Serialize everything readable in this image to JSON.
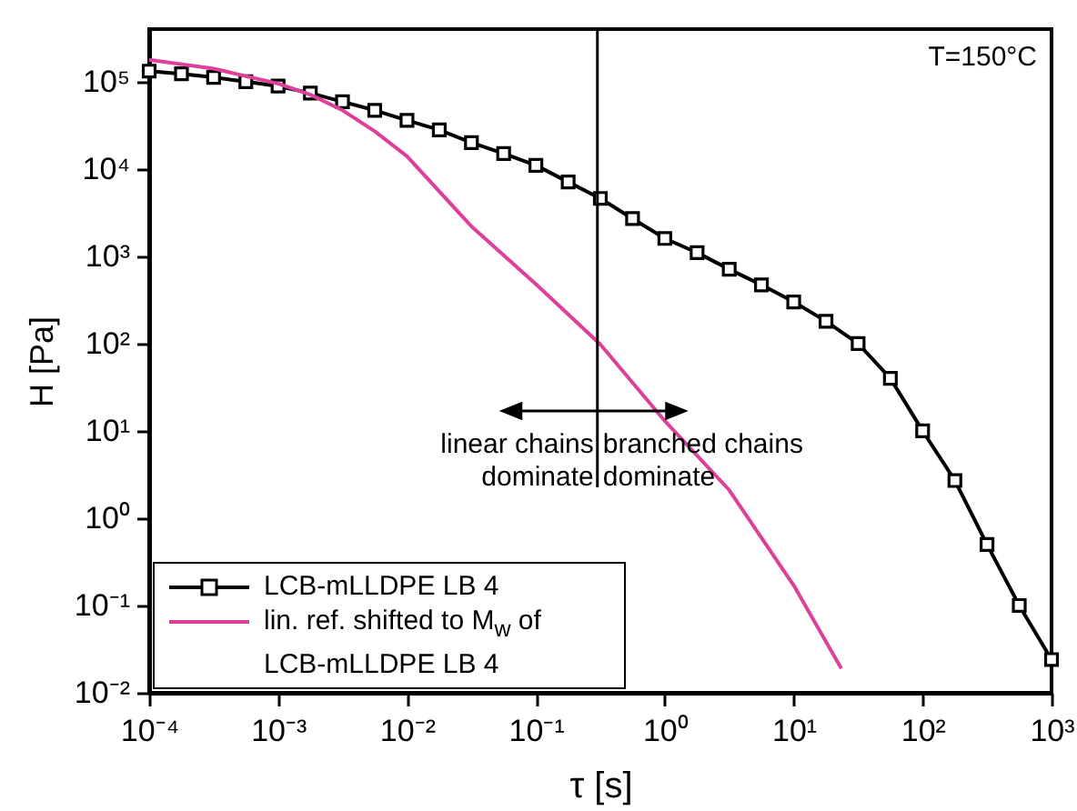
{
  "chart_data": {
    "type": "line",
    "xlabel": "τ [s]",
    "ylabel": "H [Pa]",
    "log": "xy",
    "legend": "bottom left",
    "xlim": [
      0.0001,
      1000
    ],
    "ylim": [
      0.01,
      400000
    ],
    "xticks": [
      {
        "value": 0.0001,
        "label": "10⁻⁴"
      },
      {
        "value": 0.001,
        "label": "10⁻³"
      },
      {
        "value": 0.01,
        "label": "10⁻²"
      },
      {
        "value": 0.1,
        "label": "10⁻¹"
      },
      {
        "value": 1,
        "label": "10⁰"
      },
      {
        "value": 10,
        "label": "10¹"
      },
      {
        "value": 100,
        "label": "10²"
      },
      {
        "value": 1000,
        "label": "10³"
      }
    ],
    "yticks": [
      {
        "value": 0.01,
        "label": "10⁻²"
      },
      {
        "value": 0.1,
        "label": "10⁻¹"
      },
      {
        "value": 1,
        "label": "10⁰"
      },
      {
        "value": 10,
        "label": "10¹"
      },
      {
        "value": 100,
        "label": "10²"
      },
      {
        "value": 1000,
        "label": "10³"
      },
      {
        "value": 10000,
        "label": "10⁴"
      },
      {
        "value": 100000,
        "label": "10⁵"
      }
    ],
    "series": [
      {
        "name": "LCB-mLLDPE LB 4",
        "color": "#000000",
        "marker": "square",
        "x": [
          0.0001,
          0.000178,
          0.000316,
          0.000562,
          0.001,
          0.00178,
          0.00316,
          0.00562,
          0.01,
          0.0178,
          0.0316,
          0.0562,
          0.1,
          0.178,
          0.316,
          0.562,
          1,
          1.78,
          3.16,
          5.62,
          10,
          17.8,
          31.6,
          56.2,
          100,
          178,
          316,
          562,
          1000
        ],
        "values": [
          132000,
          123000,
          112000,
          100000,
          89000,
          74000,
          59000,
          47000,
          36000,
          28000,
          20000,
          15000,
          11000,
          7100,
          4600,
          2700,
          1600,
          1100,
          710,
          470,
          300,
          180,
          100,
          40,
          10,
          2.7,
          0.5,
          0.1,
          0.024
        ]
      },
      {
        "name": "lin. ref. shifted to M$_{w}$ of LCB-mLLDPE LB 4",
        "color": "#dd3f9a",
        "marker": "none",
        "x": [
          0.0001,
          0.000316,
          0.001,
          0.00178,
          0.00316,
          0.00562,
          0.01,
          0.0316,
          0.1,
          0.316,
          1,
          3.16,
          10,
          23.4
        ],
        "values": [
          178000,
          141000,
          95000,
          71000,
          47000,
          27000,
          14000,
          2200,
          480,
          98,
          13,
          2.1,
          0.17,
          0.019
        ]
      }
    ],
    "ref_lines": [
      {
        "axis": "x",
        "value": 0.3,
        "color": "#000000"
      }
    ],
    "annotations": [
      "linear chains dominate",
      "branched chains dominate",
      "T=150°C"
    ]
  }
}
